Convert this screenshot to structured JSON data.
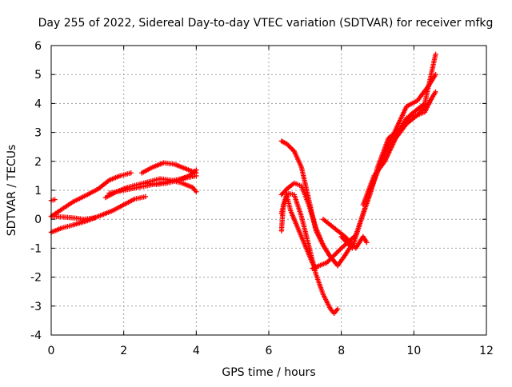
{
  "chart_data": {
    "type": "scatter",
    "title": "Day 255 of 2022, Sidereal Day-to-day VTEC variation (SDTVAR) for receiver mfkg",
    "xlabel": "GPS time / hours",
    "ylabel": "SDTVAR / TECUs",
    "xlim": [
      0,
      12
    ],
    "ylim": [
      -4,
      6
    ],
    "xticks": [
      0,
      2,
      4,
      6,
      8,
      10,
      12
    ],
    "yticks": [
      -4,
      -3,
      -2,
      -1,
      0,
      1,
      2,
      3,
      4,
      5,
      6
    ],
    "grid": true,
    "legend": "none",
    "marker": "plus",
    "color": "#ff0000",
    "series": [
      {
        "x": [
          0.0,
          0.05,
          0.1
        ],
        "y": [
          0.65,
          0.66,
          0.68
        ]
      },
      {
        "x": [
          0.0,
          0.3,
          0.6,
          1.0,
          1.3,
          1.6,
          1.9,
          2.2
        ],
        "y": [
          0.1,
          0.35,
          0.6,
          0.85,
          1.05,
          1.35,
          1.5,
          1.6
        ]
      },
      {
        "x": [
          0.0,
          0.3,
          0.6,
          1.0,
          1.4,
          1.7,
          2.0,
          2.3,
          2.6
        ],
        "y": [
          -0.45,
          -0.3,
          -0.2,
          -0.05,
          0.15,
          0.3,
          0.5,
          0.7,
          0.78
        ]
      },
      {
        "x": [
          0.0,
          0.3,
          0.6,
          0.9,
          1.2
        ],
        "y": [
          0.1,
          0.08,
          0.05,
          0.0,
          0.05
        ]
      },
      {
        "x": [
          1.5,
          1.8,
          2.1,
          2.4,
          2.7,
          3.0,
          3.3,
          3.6,
          3.9,
          4.0
        ],
        "y": [
          0.75,
          0.95,
          1.1,
          1.2,
          1.3,
          1.4,
          1.35,
          1.25,
          1.1,
          0.95
        ]
      },
      {
        "x": [
          1.6,
          2.0,
          2.4,
          2.8,
          3.2,
          3.6,
          4.0
        ],
        "y": [
          0.9,
          1.0,
          1.1,
          1.2,
          1.3,
          1.4,
          1.5
        ]
      },
      {
        "x": [
          2.5,
          2.8,
          3.1,
          3.4,
          3.7,
          4.0
        ],
        "y": [
          1.6,
          1.8,
          1.95,
          1.9,
          1.75,
          1.6
        ]
      },
      {
        "x": [
          2.6,
          2.9,
          3.2,
          3.5,
          3.8,
          4.0
        ],
        "y": [
          1.25,
          1.2,
          1.25,
          1.35,
          1.5,
          1.7
        ]
      },
      {
        "x": [
          6.35,
          6.5,
          6.7,
          6.9,
          7.1,
          7.3,
          7.5,
          7.7,
          7.9
        ],
        "y": [
          2.7,
          2.6,
          2.35,
          1.8,
          0.7,
          -0.4,
          -0.9,
          -1.3,
          -1.6
        ]
      },
      {
        "x": [
          6.35,
          6.5,
          6.7,
          6.9,
          7.1,
          7.3,
          7.5,
          7.7,
          7.9,
          8.1,
          8.3
        ],
        "y": [
          0.85,
          1.05,
          1.25,
          1.15,
          0.5,
          -0.3,
          -0.9,
          -1.3,
          -1.6,
          -1.25,
          -0.85
        ]
      },
      {
        "x": [
          6.35,
          6.5,
          6.7,
          6.9,
          7.1,
          7.3,
          7.5,
          7.7,
          7.8,
          7.9
        ],
        "y": [
          0.2,
          0.9,
          0.85,
          0.1,
          -0.9,
          -1.9,
          -2.6,
          -3.1,
          -3.25,
          -3.1
        ]
      },
      {
        "x": [
          6.35,
          6.4,
          6.5,
          6.6,
          6.8,
          7.0,
          7.2,
          7.3
        ],
        "y": [
          -0.4,
          0.5,
          0.8,
          0.3,
          -0.3,
          -0.9,
          -1.5,
          -1.7
        ]
      },
      {
        "x": [
          7.2,
          7.6,
          8.0,
          8.4,
          8.8,
          9.0,
          9.3,
          9.6,
          9.9,
          10.3,
          10.6
        ],
        "y": [
          -1.7,
          -1.5,
          -1.0,
          -0.55,
          0.9,
          1.8,
          2.8,
          3.1,
          3.6,
          4.0,
          5.7
        ]
      },
      {
        "x": [
          8.0,
          8.3,
          8.6,
          8.9,
          9.2,
          9.5,
          9.8,
          10.1,
          10.4,
          10.6
        ],
        "y": [
          -0.6,
          -1.0,
          0.2,
          1.3,
          2.3,
          3.1,
          3.9,
          4.1,
          4.6,
          5.0
        ]
      },
      {
        "x": [
          8.6,
          8.9,
          9.2,
          9.5,
          9.8,
          10.1,
          10.4,
          10.6
        ],
        "y": [
          0.5,
          1.5,
          2.0,
          2.8,
          3.3,
          3.6,
          4.0,
          4.4
        ]
      },
      {
        "x": [
          7.5,
          7.8,
          8.1,
          8.4,
          8.6,
          8.7
        ],
        "y": [
          0.0,
          -0.3,
          -0.6,
          -1.0,
          -0.6,
          -0.8
        ]
      },
      {
        "x": [
          9.5,
          9.8,
          10.1,
          10.3,
          10.5
        ],
        "y": [
          2.8,
          3.5,
          3.6,
          3.7,
          4.2
        ]
      }
    ]
  }
}
